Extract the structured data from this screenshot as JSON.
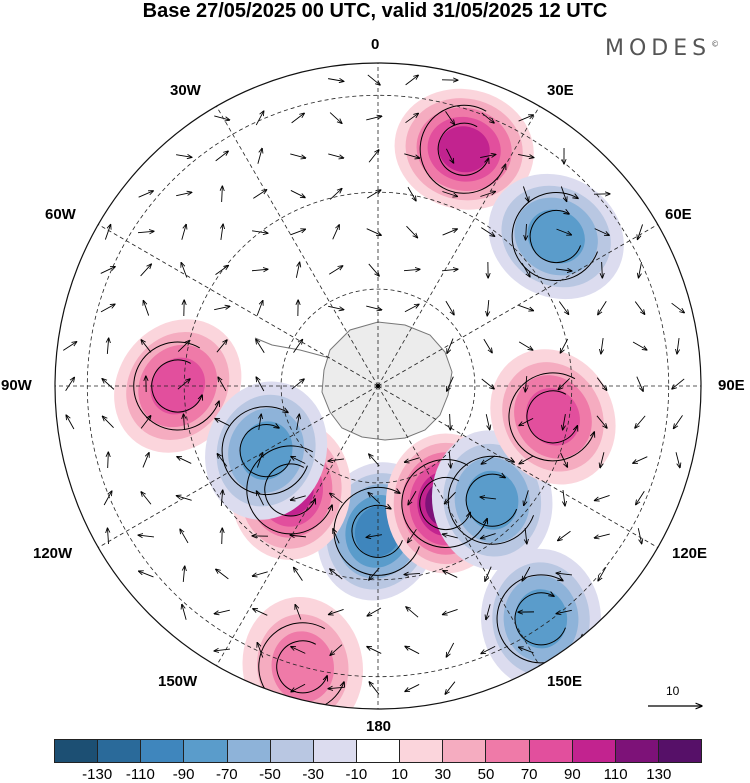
{
  "title": "Base 27/05/2025 00 UTC, valid 31/05/2025 12 UTC",
  "brand": "MODES",
  "brand_mark": "©",
  "longitude_labels": {
    "lon_0": "0",
    "lon_30e": "30E",
    "lon_60e": "60E",
    "lon_90e": "90E",
    "lon_120e": "120E",
    "lon_150e": "150E",
    "lon_180": "180",
    "lon_150w": "150W",
    "lon_120w": "120W",
    "lon_90w": "90W",
    "lon_60w": "60W",
    "lon_30w": "30W"
  },
  "reference_vector": {
    "label": "10"
  },
  "colorbar": {
    "ticks": [
      "-130",
      "-110",
      "-90",
      "-70",
      "-50",
      "-30",
      "-10",
      "10",
      "30",
      "50",
      "70",
      "90",
      "110",
      "130"
    ],
    "colors": [
      "#1c4f73",
      "#2a6a9a",
      "#3f86bd",
      "#5a9ccb",
      "#8eb3d9",
      "#b9c7e2",
      "#dcdcef",
      "#ffffff",
      "#fbd5dc",
      "#f5acc0",
      "#ef7aa8",
      "#e24f9d",
      "#c2238f",
      "#7d1278",
      "#561068"
    ]
  },
  "anomaly_centers": [
    {
      "sign": "positive",
      "lon_label": "20E",
      "value": 100
    },
    {
      "sign": "negative",
      "lon_label": "50E",
      "value": -80
    },
    {
      "sign": "positive",
      "lon_label": "90W",
      "value": 80
    },
    {
      "sign": "negative",
      "lon_label": "180",
      "value": -110
    },
    {
      "sign": "positive",
      "lon_label": "150E",
      "value": 120
    },
    {
      "sign": "positive",
      "lon_label": "140W",
      "value": 110
    },
    {
      "sign": "negative",
      "lon_label": "120W",
      "value": -80
    },
    {
      "sign": "negative",
      "lon_label": "135E",
      "value": -80
    },
    {
      "sign": "positive",
      "lon_label": "100E",
      "value": 90
    },
    {
      "sign": "negative",
      "lon_label": "145E",
      "value": -80
    },
    {
      "sign": "positive",
      "lon_label": "165W",
      "value": 70
    }
  ]
}
